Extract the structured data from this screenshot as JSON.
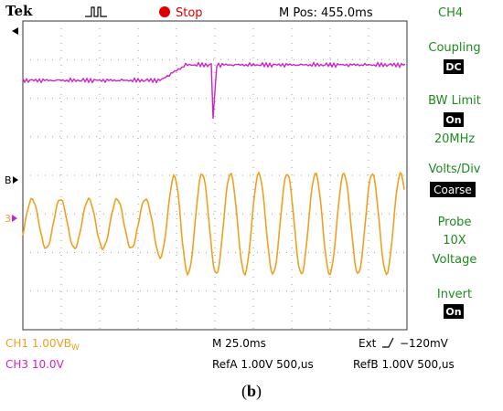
{
  "header": {
    "brand": "Tek",
    "run_state": "Stop",
    "run_state_color": "#e00000",
    "m_pos": "M Pos: 455.0ms",
    "channel": "CH4"
  },
  "menu": {
    "coupling_label": "Coupling",
    "coupling_value": "DC",
    "bw_label": "BW Limit",
    "bw_value": "On",
    "bw_freq": "20MHz",
    "volts_label": "Volts/Div",
    "volts_value": "Coarse",
    "probe_label": "Probe",
    "probe_value": "10X",
    "probe_type": "Voltage",
    "invert_label": "Invert",
    "invert_value": "On"
  },
  "status": {
    "ch1": "CH1  1.00VB",
    "ch1_bw": "W",
    "ch3": "CH3  10.0V",
    "timebase": "M 25.0ms",
    "trigger": "Ext",
    "trigger_level": "−120mV",
    "refa": "RefA 1.00V 500,us",
    "refb": "RefB 1.00V 500,us"
  },
  "markers": {
    "ch_b": "B",
    "ch_3": "3"
  },
  "caption": {
    "open": "(",
    "letter": "b",
    "close": ")"
  },
  "colors": {
    "ch1": "#f0a020",
    "ch3": "#cc22cc",
    "menu_text": "#1f8a1f",
    "grid": "#9a9a9a"
  }
}
